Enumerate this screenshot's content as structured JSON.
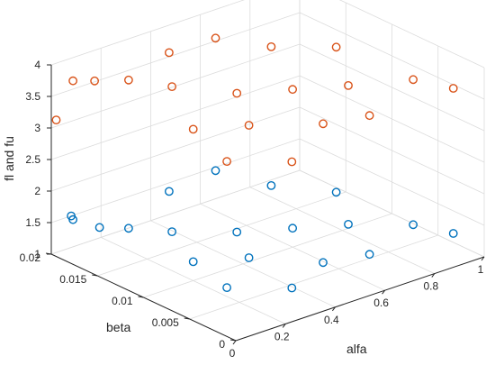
{
  "chart_data": {
    "type": "scatter",
    "xlabel": "alfa",
    "ylabel": "beta",
    "zlabel": "fl and fu",
    "xlim": [
      0,
      1
    ],
    "ylim": [
      0,
      0.02
    ],
    "zlim": [
      1,
      4
    ],
    "xticks": [
      "0",
      "0.2",
      "0.4",
      "0.6",
      "0.8",
      "1"
    ],
    "yticks": [
      "0",
      "0.005",
      "0.01",
      "0.015",
      "0.02"
    ],
    "zticks": [
      "1",
      "1.5",
      "2",
      "2.5",
      "3",
      "3.5",
      "4"
    ],
    "grid": true,
    "colors": {
      "fl": "#0072bd",
      "fu": "#d95319"
    },
    "series": [
      {
        "marker": "circle",
        "color": "#0072bd",
        "points": [
          [
            0.08,
            0.02,
            1.5
          ],
          [
            0.05,
            0.019,
            1.55
          ],
          [
            0.12,
            0.018,
            1.4
          ],
          [
            0.2,
            0.017,
            1.35
          ],
          [
            0.3,
            0.015,
            1.3
          ],
          [
            0.45,
            0.012,
            1.3
          ],
          [
            0.6,
            0.01,
            1.3
          ],
          [
            0.75,
            0.008,
            1.3
          ],
          [
            0.9,
            0.005,
            1.3
          ],
          [
            0.95,
            0.002,
            1.3
          ],
          [
            0.5,
            0.004,
            1.3
          ],
          [
            0.3,
            0.002,
            1.3
          ],
          [
            0.15,
            0.005,
            1.3
          ],
          [
            0.4,
            0.018,
            1.6
          ],
          [
            0.55,
            0.017,
            1.8
          ],
          [
            0.7,
            0.015,
            1.5
          ],
          [
            0.2,
            0.01,
            1.3
          ],
          [
            0.35,
            0.008,
            1.3
          ],
          [
            0.65,
            0.003,
            1.3
          ],
          [
            0.85,
            0.012,
            1.4
          ]
        ]
      },
      {
        "marker": "circle",
        "color": "#d95319",
        "points": [
          [
            0.05,
            0.019,
            3.75
          ],
          [
            0.1,
            0.018,
            3.75
          ],
          [
            0.2,
            0.017,
            3.7
          ],
          [
            0.3,
            0.015,
            3.6
          ],
          [
            0.45,
            0.012,
            3.5
          ],
          [
            0.6,
            0.01,
            3.5
          ],
          [
            0.75,
            0.008,
            3.5
          ],
          [
            0.9,
            0.005,
            3.6
          ],
          [
            0.95,
            0.002,
            3.6
          ],
          [
            0.5,
            0.004,
            3.5
          ],
          [
            0.3,
            0.002,
            3.3
          ],
          [
            0.15,
            0.005,
            3.3
          ],
          [
            0.4,
            0.018,
            3.8
          ],
          [
            0.55,
            0.017,
            3.9
          ],
          [
            0.7,
            0.015,
            3.7
          ],
          [
            0.2,
            0.01,
            3.4
          ],
          [
            0.35,
            0.008,
            3.4
          ],
          [
            0.65,
            0.003,
            3.5
          ],
          [
            0.85,
            0.012,
            3.7
          ],
          [
            0.02,
            0.02,
            3.1
          ]
        ]
      }
    ]
  }
}
